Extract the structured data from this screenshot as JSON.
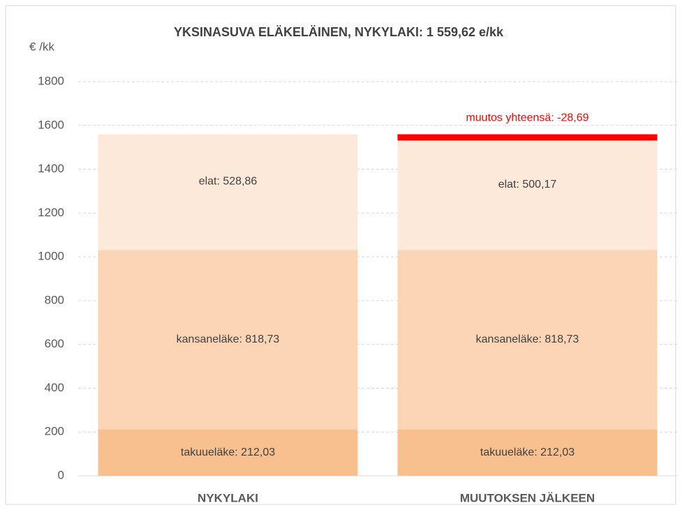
{
  "chart_data": {
    "type": "stacked_bar",
    "title": "YKSINASUVA ELÄKELÄINEN, NYKYLAKI: 1 559,62 e/kk",
    "y_label": "€ /kk",
    "categories": [
      "NYKYLAKI",
      "MUUTOKSEN JÄLKEEN"
    ],
    "series": [
      {
        "color": "#f9c08f",
        "values": [
          212.03,
          212.03
        ],
        "value_labels": [
          "takuueläke: 212,03",
          "takuueläke: 212,03"
        ]
      },
      {
        "color": "#fbd5b5",
        "values": [
          818.73,
          818.73
        ],
        "value_labels": [
          "kansaneläke: 818,73",
          "kansaneläke: 818,73"
        ]
      },
      {
        "color": "#fde9d9",
        "values": [
          528.86,
          500.17
        ],
        "value_labels": [
          "elat: 528,86",
          "elat: 500,17"
        ]
      },
      {
        "color": "#ff0000",
        "values": [
          null,
          28.69
        ],
        "value_labels": [
          null,
          "muutos yhteensä: -28,69"
        ],
        "label_color": "#ff0000"
      }
    ],
    "ylim": [
      0,
      1800
    ],
    "yticks": [
      0,
      200,
      400,
      600,
      800,
      1000,
      1200,
      1400,
      1600,
      1800
    ],
    "grid": true
  }
}
